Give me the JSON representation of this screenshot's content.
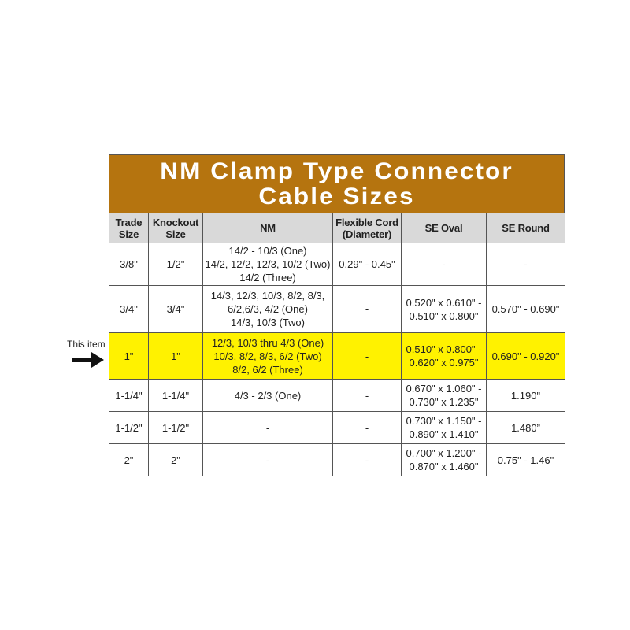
{
  "title": [
    "NM Clamp Type Connector",
    "Cable Sizes"
  ],
  "colors": {
    "title_bg": "#b5740f",
    "header_bg": "#d9d9d9",
    "highlight": "#fff200"
  },
  "annotation": {
    "label": "This item",
    "icon": "arrow-right-icon"
  },
  "columns": [
    "Trade\nSize",
    "Knockout\nSize",
    "NM",
    "Flexible Cord\n(Diameter)",
    "SE Oval",
    "SE Round"
  ],
  "rows": [
    {
      "cells": [
        "3/8\"",
        "1/2\"",
        "14/2 - 10/3 (One)\n14/2, 12/2, 12/3, 10/2 (Two)\n14/2 (Three)",
        "0.29\" - 0.45\"",
        "-",
        "-"
      ],
      "highlight": false
    },
    {
      "cells": [
        "3/4\"",
        "3/4\"",
        "14/3, 12/3, 10/3, 8/2, 8/3,\n6/2,6/3, 4/2 (One)\n14/3, 10/3 (Two)",
        "-",
        "0.520\" x 0.610\" -\n0.510\" x 0.800\"",
        "0.570\" - 0.690\""
      ],
      "highlight": false
    },
    {
      "cells": [
        "1\"",
        "1\"",
        "12/3, 10/3 thru 4/3 (One)\n10/3, 8/2, 8/3, 6/2 (Two)\n8/2, 6/2 (Three)",
        "-",
        "0.510\" x 0.800\" -\n0.620\" x 0.975\"",
        "0.690\" - 0.920\""
      ],
      "highlight": true
    },
    {
      "cells": [
        "1-1/4\"",
        "1-1/4\"",
        "4/3 - 2/3 (One)",
        "-",
        "0.670\" x 1.060\" -\n0.730\" x 1.235\"",
        "1.190\""
      ],
      "highlight": false
    },
    {
      "cells": [
        "1-1/2\"",
        "1-1/2\"",
        "-",
        "-",
        "0.730\" x 1.150\" -\n0.890\" x 1.410\"",
        "1.480”"
      ],
      "highlight": false
    },
    {
      "cells": [
        "2\"",
        "2\"",
        "-",
        "-",
        "0.700\" x 1.200\" -\n0.870\" x 1.460\"",
        "0.75\" - 1.46\""
      ],
      "highlight": false
    }
  ]
}
